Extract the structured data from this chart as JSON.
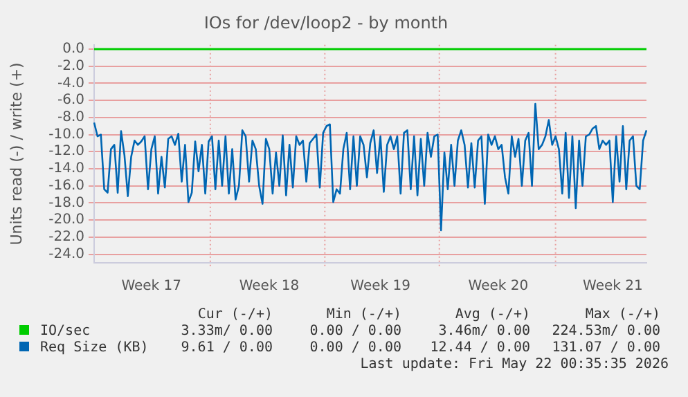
{
  "chart_data": {
    "type": "line",
    "title": "IOs for /dev/loop2 - by month",
    "ylabel": "Units read (-) / write (+)",
    "categories": [
      null,
      null,
      null,
      null,
      null,
      null,
      null,
      null,
      null,
      null,
      null,
      null,
      null,
      null,
      null,
      null,
      null,
      "Week 17",
      null,
      null,
      null,
      null,
      null,
      null,
      null,
      null,
      null,
      null,
      null,
      null,
      null,
      null,
      null,
      null,
      null,
      null,
      null,
      null,
      null,
      null,
      null,
      null,
      null,
      null,
      null,
      null,
      null,
      null,
      null,
      null,
      null,
      null,
      "Week 18",
      null,
      null,
      null,
      null,
      null,
      null,
      null,
      null,
      null,
      null,
      null,
      null,
      null,
      null,
      null,
      null,
      null,
      null,
      null,
      null,
      null,
      null,
      null,
      null,
      null,
      null,
      null,
      null,
      null,
      null,
      null,
      null,
      "Week 19",
      null,
      null,
      null,
      null,
      null,
      null,
      null,
      null,
      null,
      null,
      null,
      null,
      null,
      null,
      null,
      null,
      null,
      null,
      null,
      null,
      null,
      null,
      null,
      null,
      null,
      null,
      null,
      null,
      null,
      null,
      null,
      null,
      null,
      null,
      "Week 20",
      null,
      null,
      null,
      null,
      null,
      null,
      null,
      null,
      null,
      null,
      null,
      null,
      null,
      null,
      null,
      null,
      null,
      null,
      null,
      null,
      null,
      null,
      null,
      null,
      null,
      null,
      null,
      null,
      null,
      null,
      null,
      null,
      null,
      "Week 21",
      null,
      null,
      null,
      null,
      null,
      null,
      null,
      null,
      null,
      null
    ],
    "ylim": [
      -25,
      0.5
    ],
    "yticks": [
      {
        "value": 0,
        "label": "0.0"
      },
      {
        "value": -2,
        "label": "-2.0"
      },
      {
        "value": -4,
        "label": "-4.0"
      },
      {
        "value": -6,
        "label": "-6.0"
      },
      {
        "value": -8,
        "label": "-8.0"
      },
      {
        "value": -10,
        "label": "-10.0"
      },
      {
        "value": -12,
        "label": "-12.0"
      },
      {
        "value": -14,
        "label": "-14.0"
      },
      {
        "value": -16,
        "label": "-16.0"
      },
      {
        "value": -18,
        "label": "-18.0"
      },
      {
        "value": -20,
        "label": "-20.0"
      },
      {
        "value": -22,
        "label": "-22.0"
      },
      {
        "value": -24,
        "label": "-24.0"
      }
    ],
    "grid": true,
    "legend": "bottom",
    "marker": "none",
    "line_style": "solid",
    "series": [
      {
        "name": "IO/sec",
        "color": "#00cc00",
        "values": [
          0,
          0,
          0,
          0,
          0,
          0,
          0,
          0,
          0,
          0,
          0,
          0,
          0,
          0,
          0,
          0,
          0,
          0,
          0,
          0,
          0,
          0,
          0,
          0,
          0,
          0,
          0,
          0,
          0,
          0,
          0,
          0,
          0,
          0,
          0,
          0,
          0,
          0,
          0,
          0,
          0,
          0,
          0,
          0,
          0,
          0,
          0,
          0,
          0,
          0,
          0,
          0,
          0,
          0,
          0,
          0,
          0,
          0,
          0,
          0,
          0,
          0,
          0,
          0,
          0,
          0,
          0,
          0,
          0,
          0,
          0,
          0,
          0,
          0,
          0,
          0,
          0,
          0,
          0,
          0,
          0,
          0,
          0,
          0,
          0,
          0,
          0,
          0,
          0,
          0,
          0,
          0,
          0,
          0,
          0,
          0,
          0,
          0,
          0,
          0,
          0,
          0,
          0,
          0,
          0,
          0,
          0,
          0,
          0,
          0,
          0,
          0,
          0,
          0,
          0,
          0,
          0,
          0,
          0,
          0,
          0,
          0,
          0,
          0,
          0,
          0,
          0,
          0,
          0,
          0,
          0,
          0,
          0,
          0,
          0,
          0,
          0,
          0,
          0,
          0,
          0,
          0,
          0,
          0,
          0,
          0,
          0,
          0,
          0,
          0,
          0,
          0,
          0,
          0,
          0,
          0,
          0,
          0,
          0,
          0,
          0,
          0,
          0,
          0,
          0
        ]
      },
      {
        "name": "Req Size (KB)",
        "color": "#0066b3",
        "values": [
          -8.6,
          -10.2,
          -10,
          -16.4,
          -16.8,
          -11.7,
          -11.2,
          -16.8,
          -9.6,
          -12.4,
          -17.2,
          -12.6,
          -10.7,
          -11.2,
          -10.8,
          -10.2,
          -16.4,
          -11.7,
          -10.2,
          -16.9,
          -12.6,
          -16.2,
          -10.5,
          -10.2,
          -11.2,
          -9.9,
          -15.5,
          -11.2,
          -17.9,
          -16.8,
          -10.8,
          -14.3,
          -11.2,
          -16.9,
          -10.8,
          -10.2,
          -16.4,
          -10.7,
          -16,
          -10.2,
          -16.9,
          -11.7,
          -17.6,
          -16,
          -9.5,
          -10.2,
          -15.5,
          -10.7,
          -11.7,
          -16,
          -18.1,
          -10.5,
          -11.7,
          -16.9,
          -12.1,
          -16,
          -10.1,
          -17.1,
          -11.2,
          -16.2,
          -10.2,
          -11.2,
          -10.7,
          -15.5,
          -11,
          -10.5,
          -10,
          -16.2,
          -9.8,
          -9,
          -8.8,
          -17.9,
          -16.4,
          -16.9,
          -11.7,
          -9.8,
          -16.4,
          -10.2,
          -16,
          -10.2,
          -11.2,
          -15,
          -11,
          -9.5,
          -14.5,
          -10.2,
          -16.7,
          -11.2,
          -10.2,
          -11.7,
          -10.2,
          -16.9,
          -9.8,
          -9.5,
          -16.4,
          -10.2,
          -17.1,
          -10.5,
          -16,
          -9.8,
          -12.6,
          -10.2,
          -10,
          -21.2,
          -12.1,
          -16.4,
          -11.2,
          -16,
          -10.7,
          -9.5,
          -11.2,
          -16.2,
          -11,
          -16.2,
          -10.7,
          -10.2,
          -18.1,
          -10,
          -11.2,
          -10.2,
          -11.7,
          -11.2,
          -15,
          -16.9,
          -10.2,
          -12.6,
          -10.5,
          -16,
          -10.7,
          -9.8,
          -16,
          -6.4,
          -11.7,
          -11.2,
          -10.2,
          -8.3,
          -11.2,
          -10.2,
          -11.7,
          -16.9,
          -9.8,
          -17.4,
          -10.2,
          -18.6,
          -10.7,
          -16,
          -10.2,
          -10,
          -9.3,
          -9,
          -11.7,
          -10.7,
          -11.2,
          -10.7,
          -17.9,
          -10.2,
          -15.5,
          -9,
          -16.4,
          -10.7,
          -10.2,
          -16,
          -16.4,
          -10.7,
          -9.5
        ]
      }
    ],
    "annotations": [
      "Cur (-/+)",
      "Min (-/+)",
      "Avg (-/+)",
      "Max (-/+)",
      "3.33m/ 0.00",
      "0.00 / 0.00",
      "3.46m/ 0.00",
      "224.53m/ 0.00",
      "9.61 / 0.00",
      "0.00 / 0.00",
      "12.44 / 0.00",
      "131.07 / 0.00",
      "Last update: Fri May 22 00:35:35 2026"
    ]
  }
}
